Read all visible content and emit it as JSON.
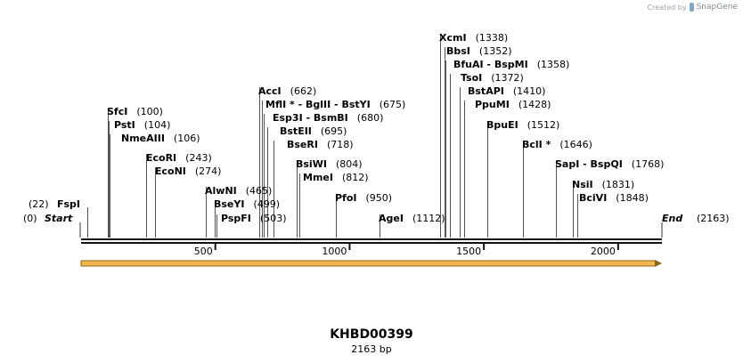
{
  "header": {
    "credit_text": "Created by",
    "credit_brand": "SnapGene"
  },
  "sequence": {
    "name": "KHBD00399",
    "length_label": "2163 bp",
    "length": 2163
  },
  "ends": {
    "start": {
      "label": "Start",
      "pos_label": "(0)",
      "pos": 0
    },
    "end": {
      "label": "End",
      "pos_label": "(2163)",
      "pos": 2163
    }
  },
  "axis": {
    "ticks": [
      {
        "label": "500",
        "value": 500
      },
      {
        "label": "1000",
        "value": 1000
      },
      {
        "label": "1500",
        "value": 1500
      },
      {
        "label": "2000",
        "value": 2000
      }
    ]
  },
  "sites": [
    {
      "label": "FspI",
      "pos_label": "(22)",
      "pos": 22
    },
    {
      "label": "SfcI",
      "pos_label": "(100)",
      "pos": 100
    },
    {
      "label": "PstI",
      "pos_label": "(104)",
      "pos": 104
    },
    {
      "label": "NmeAIII",
      "pos_label": "(106)",
      "pos": 106
    },
    {
      "label": "EcoRI",
      "pos_label": "(243)",
      "pos": 243
    },
    {
      "label": "EcoNI",
      "pos_label": "(274)",
      "pos": 274
    },
    {
      "label": "AlwNI",
      "pos_label": "(465)",
      "pos": 465
    },
    {
      "label": "BseYI",
      "pos_label": "(499)",
      "pos": 499
    },
    {
      "label": "PspFI",
      "pos_label": "(503)",
      "pos": 503
    },
    {
      "label": "AccI",
      "pos_label": "(662)",
      "pos": 662
    },
    {
      "label": "MflI * - BglII - BstYI",
      "pos_label": "(675)",
      "pos": 675
    },
    {
      "label": "Esp3I - BsmBI",
      "pos_label": "(680)",
      "pos": 680
    },
    {
      "label": "BstEII",
      "pos_label": "(695)",
      "pos": 695
    },
    {
      "label": "BseRI",
      "pos_label": "(718)",
      "pos": 718
    },
    {
      "label": "BsiWI",
      "pos_label": "(804)",
      "pos": 804
    },
    {
      "label": "MmeI",
      "pos_label": "(812)",
      "pos": 812
    },
    {
      "label": "PfoI",
      "pos_label": "(950)",
      "pos": 950
    },
    {
      "label": "AgeI",
      "pos_label": "(1112)",
      "pos": 1112
    },
    {
      "label": "XcmI",
      "pos_label": "(1338)",
      "pos": 1338
    },
    {
      "label": "BbsI",
      "pos_label": "(1352)",
      "pos": 1352
    },
    {
      "label": "BfuAI - BspMI",
      "pos_label": "(1358)",
      "pos": 1358
    },
    {
      "label": "TsoI",
      "pos_label": "(1372)",
      "pos": 1372
    },
    {
      "label": "BstAPI",
      "pos_label": "(1410)",
      "pos": 1410
    },
    {
      "label": "PpuMI",
      "pos_label": "(1428)",
      "pos": 1428
    },
    {
      "label": "BpuEI",
      "pos_label": "(1512)",
      "pos": 1512
    },
    {
      "label": "BclI *",
      "pos_label": "(1646)",
      "pos": 1646
    },
    {
      "label": "SapI - BspQI",
      "pos_label": "(1768)",
      "pos": 1768
    },
    {
      "label": "NsiI",
      "pos_label": "(1831)",
      "pos": 1831
    },
    {
      "label": "BciVI",
      "pos_label": "(1848)",
      "pos": 1848
    }
  ],
  "feature": {
    "direction": "forward",
    "start": 0,
    "end": 2163,
    "color": "#f2b84b"
  }
}
